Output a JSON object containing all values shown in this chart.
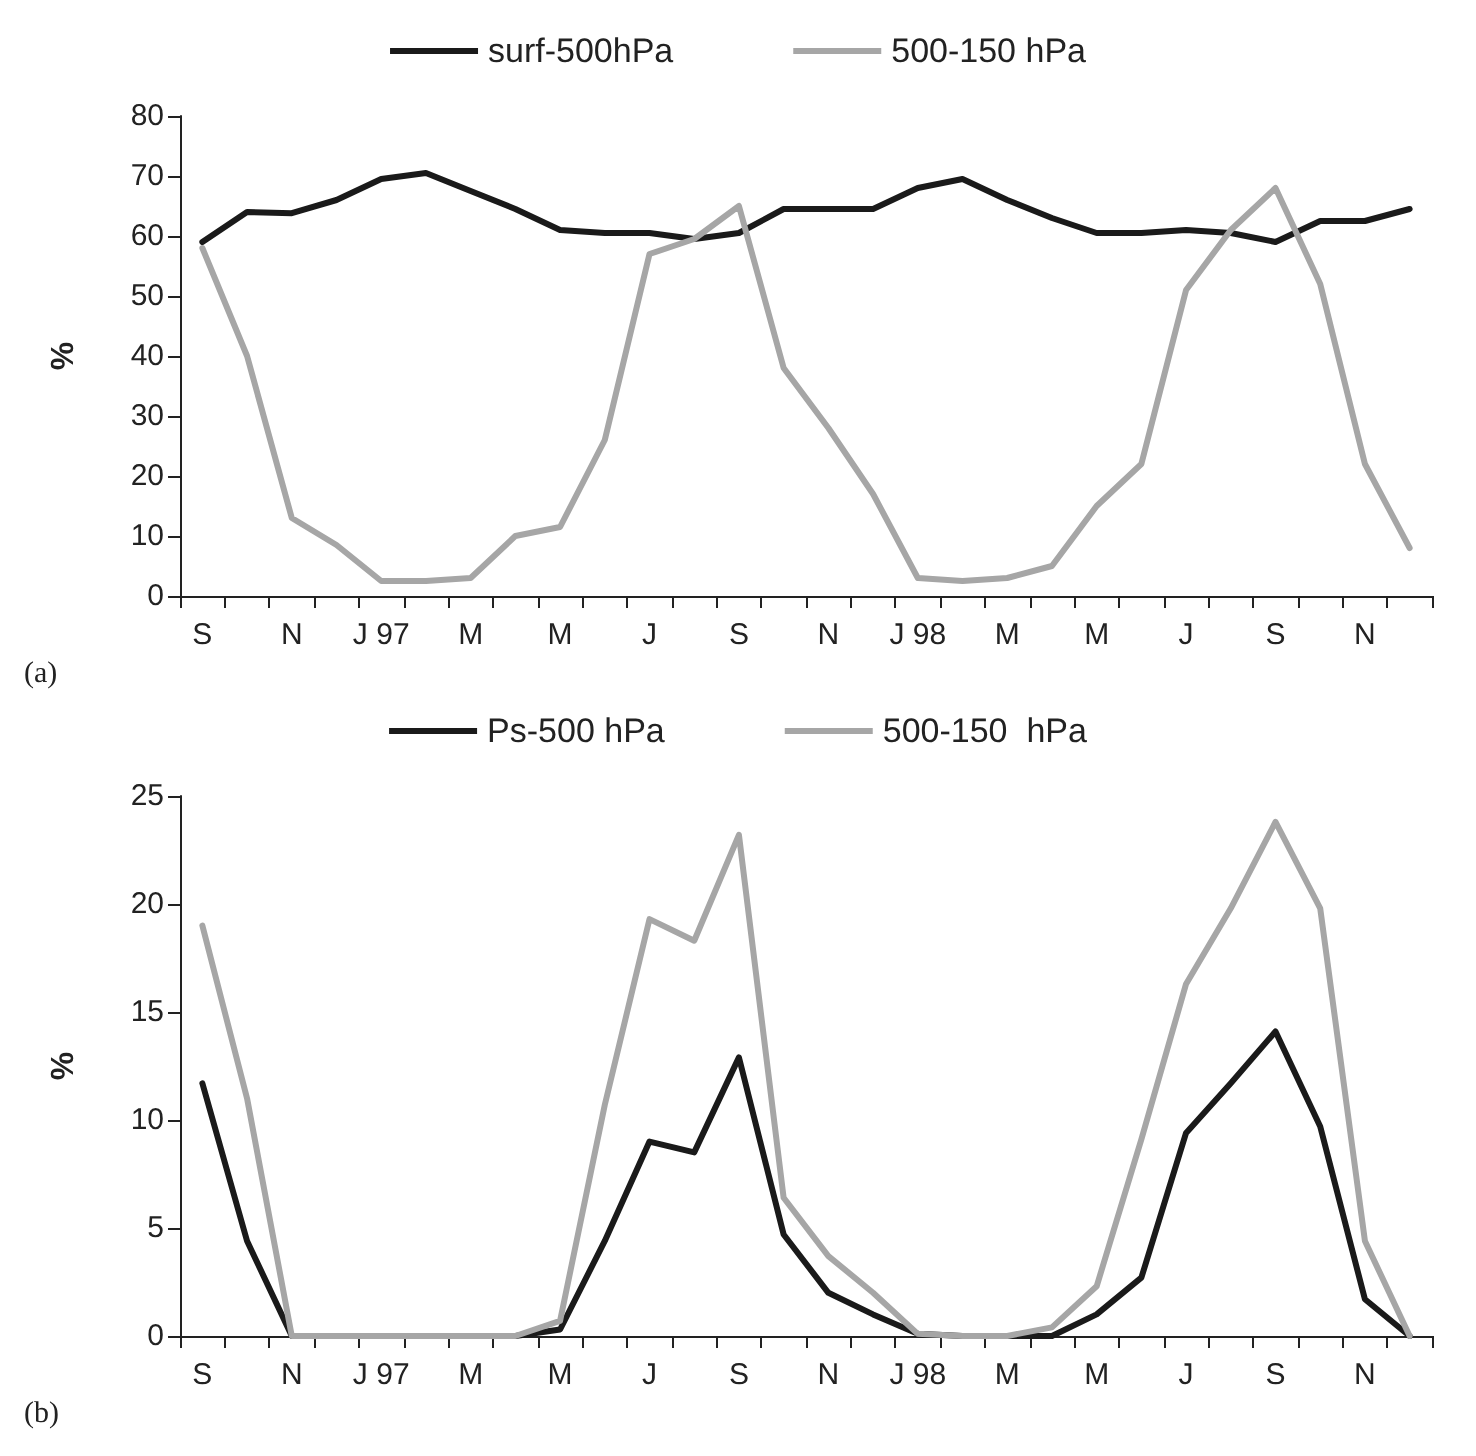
{
  "chart_data": [
    {
      "type": "line",
      "ylabel": "%",
      "annotations": [
        "(a)"
      ],
      "categories": [
        "S",
        null,
        "N",
        null,
        "J 97",
        null,
        "M",
        null,
        "M",
        null,
        "J",
        null,
        "S",
        null,
        "N",
        null,
        "J 98",
        null,
        "M",
        null,
        "M",
        null,
        "J",
        null,
        "S",
        null,
        "N",
        null
      ],
      "series": [
        {
          "name": "surf-500hPa",
          "color": "#1a1a1a",
          "values": [
            59,
            64,
            63.8,
            66,
            69.5,
            70.5,
            67.5,
            64.5,
            61,
            60.5,
            60.5,
            59.5,
            60.5,
            64.5,
            64.5,
            64.5,
            68,
            69.5,
            66,
            63,
            60.5,
            60.5,
            61,
            60.5,
            59,
            62.5,
            62.5,
            64.5
          ]
        },
        {
          "name": "500-150 hPa",
          "color": "#a6a6a6",
          "values": [
            58,
            40,
            13,
            8.5,
            2.5,
            2.5,
            3,
            10,
            11.5,
            26,
            57,
            59.5,
            65,
            38,
            28,
            17,
            3,
            2.5,
            3,
            5,
            15,
            22,
            51,
            61,
            68,
            52,
            22,
            8
          ]
        }
      ],
      "ylim": [
        0,
        80
      ],
      "yticks": [
        0,
        10,
        20,
        30,
        40,
        50,
        60,
        70,
        80
      ],
      "grid": false,
      "legend": "top",
      "marker": "none",
      "line_style": "solid"
    },
    {
      "type": "line",
      "ylabel": "%",
      "annotations": [
        "(b)"
      ],
      "categories": [
        "S",
        null,
        "N",
        null,
        "J 97",
        null,
        "M",
        null,
        "M",
        null,
        "J",
        null,
        "S",
        null,
        "N",
        null,
        "J 98",
        null,
        "M",
        null,
        "M",
        null,
        "J",
        null,
        "S",
        null,
        "N",
        null
      ],
      "series": [
        {
          "name": "Ps-500 hPa",
          "color": "#1a1a1a",
          "values": [
            11.7,
            4.4,
            0,
            0,
            0,
            0,
            0,
            0,
            0.3,
            4.4,
            9,
            8.5,
            12.9,
            4.7,
            2,
            1,
            0.1,
            0,
            0,
            0,
            1,
            2.7,
            9.4,
            11.7,
            14.1,
            9.7,
            1.7,
            0
          ]
        },
        {
          "name": "500-150  hPa",
          "color": "#a6a6a6",
          "values": [
            19,
            11,
            0,
            0,
            0,
            0,
            0,
            0,
            0.7,
            10.7,
            19.3,
            18.3,
            23.2,
            6.4,
            3.7,
            2,
            0.1,
            0,
            0,
            0.4,
            2.3,
            9.1,
            16.3,
            19.8,
            23.8,
            19.8,
            4.4,
            0
          ]
        }
      ],
      "ylim": [
        0,
        25
      ],
      "yticks": [
        0,
        5,
        10,
        15,
        20,
        25
      ],
      "grid": false,
      "legend": "top",
      "marker": "none",
      "line_style": "solid"
    }
  ]
}
